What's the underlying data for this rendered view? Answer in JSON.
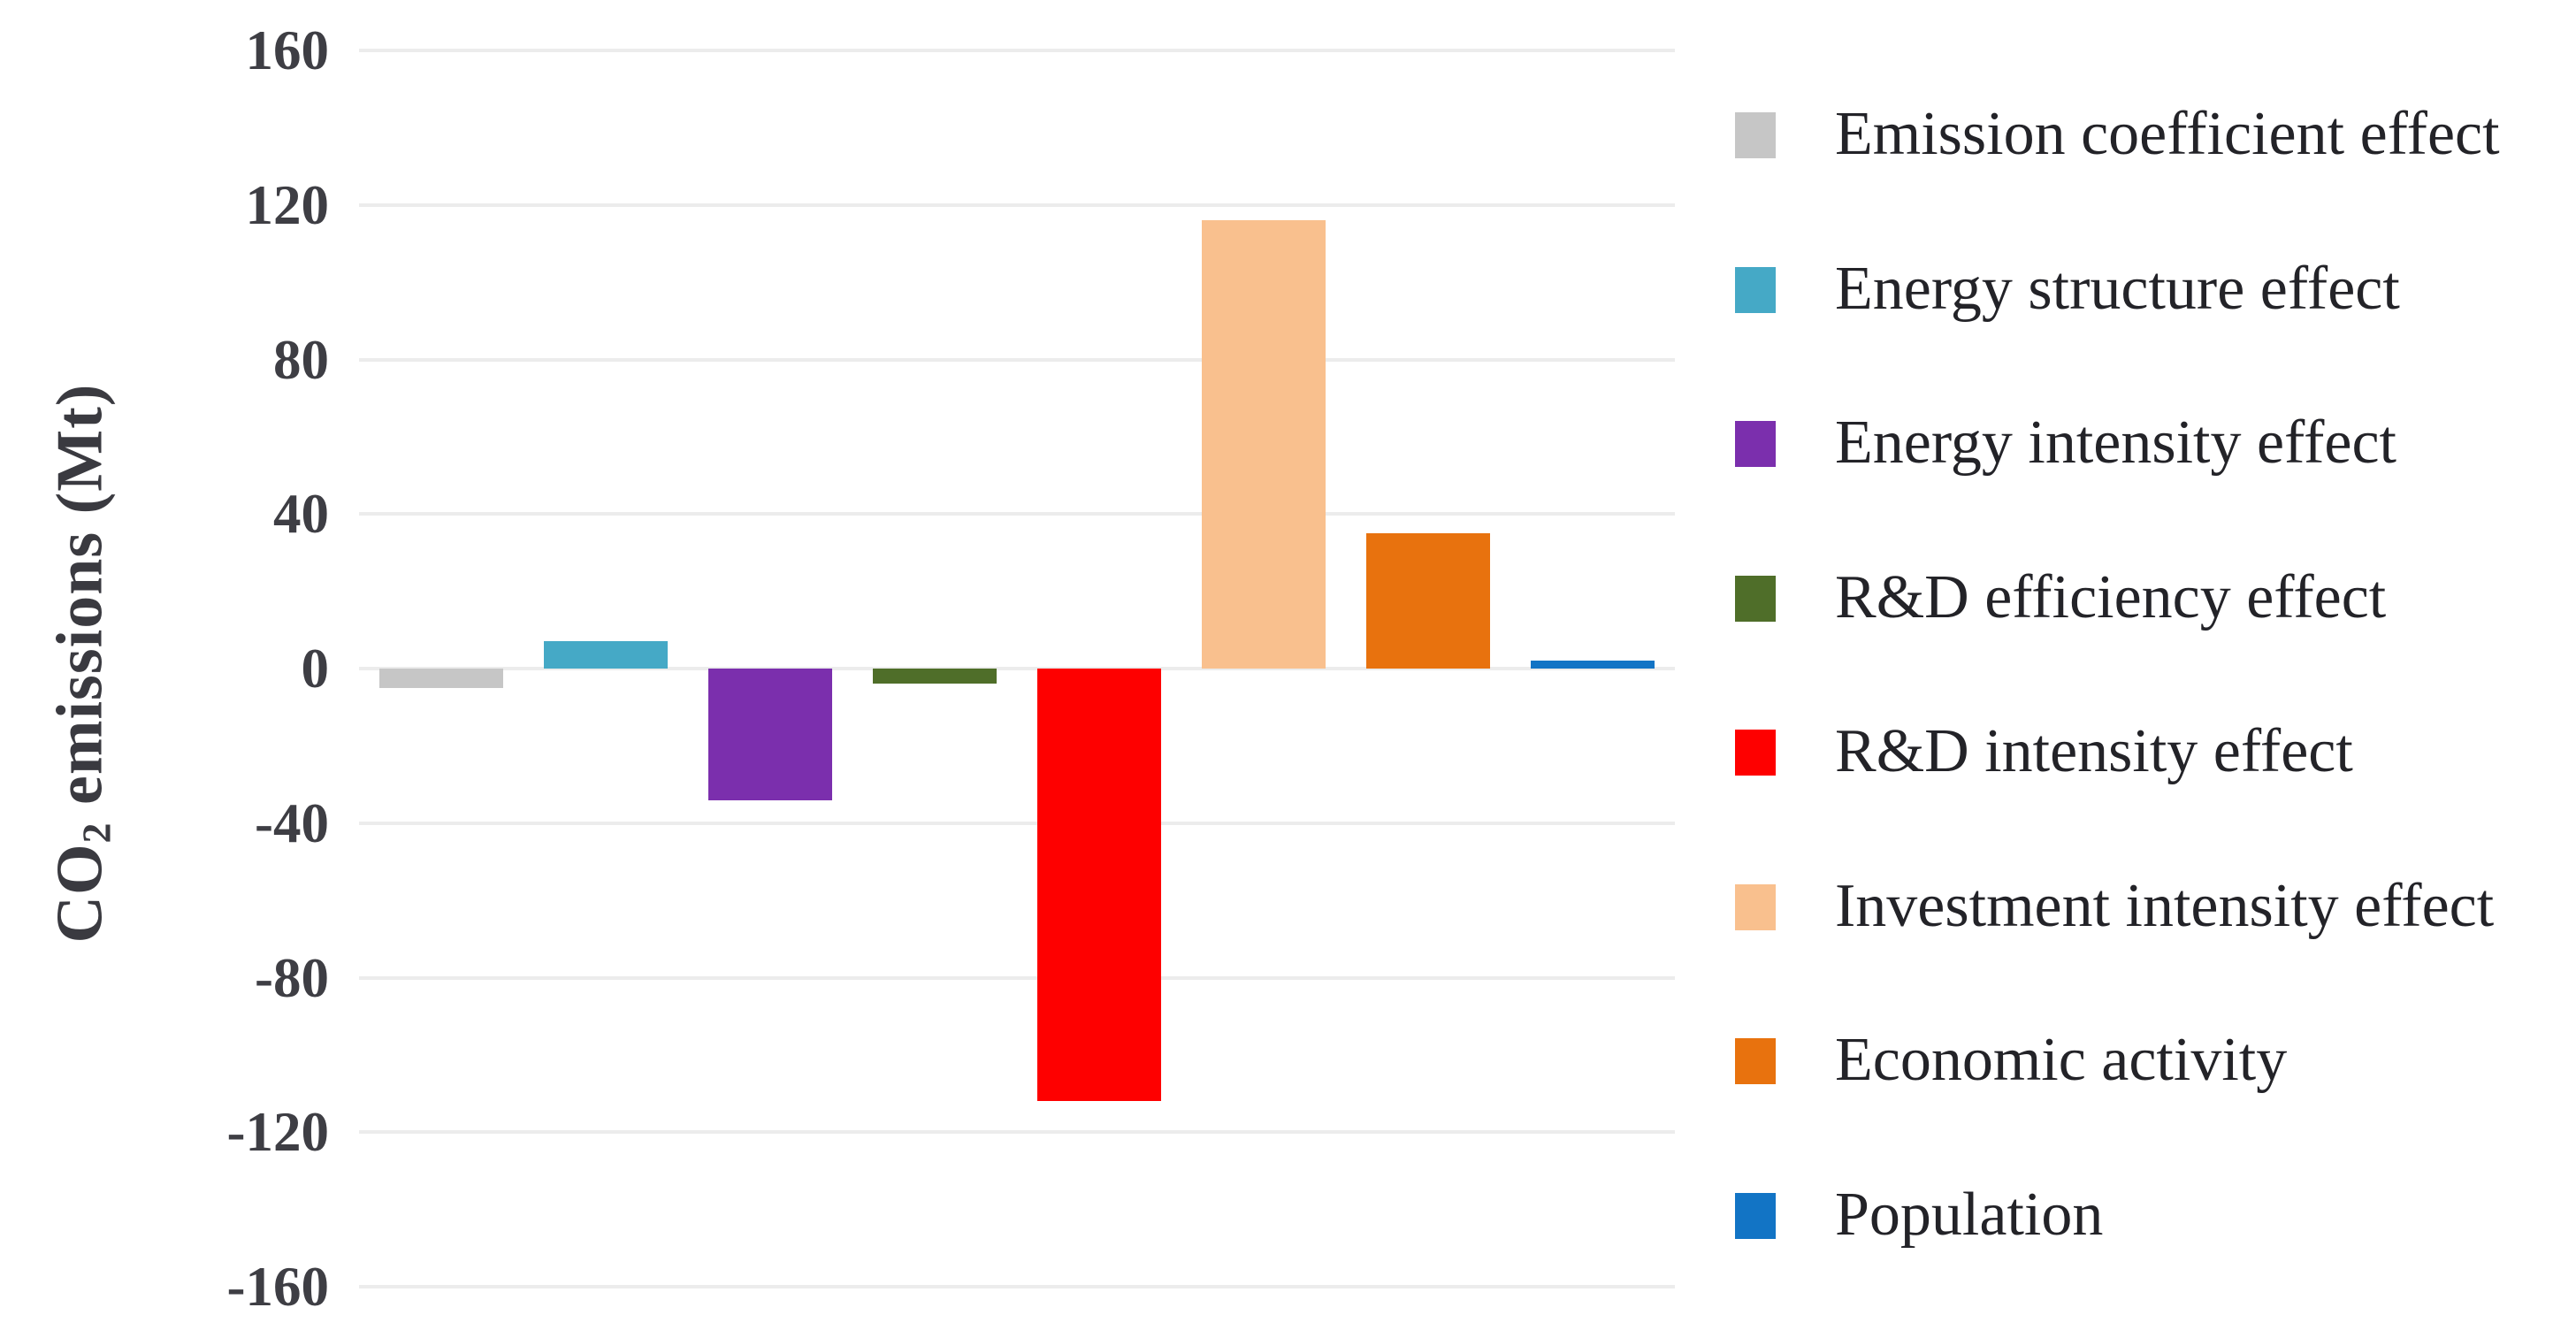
{
  "figure": {
    "background": "#ffffff",
    "ylabel_parts": {
      "prefix": "CO",
      "sub": "2",
      "suffix": " emissions (Mt)"
    }
  },
  "chart_data": {
    "type": "bar",
    "title": "",
    "xlabel": "",
    "ylabel": "CO2 emissions (Mt)",
    "ylim": [
      -160,
      160
    ],
    "yticks": [
      160,
      120,
      80,
      40,
      0,
      -40,
      -80,
      -120,
      -160
    ],
    "grid": true,
    "legend_position": "right",
    "categories": [
      "Emission coefficient effect",
      "Energy structure effect",
      "Energy intensity effect",
      "R&D efficiency effect",
      "R&D intensity effect",
      "Investment intensity effect",
      "Economic activity",
      "Population"
    ],
    "values": [
      -5,
      7,
      -34,
      -4,
      -112,
      116,
      35,
      2
    ],
    "colors": [
      "#c6c6c6",
      "#45a9c6",
      "#7b2fad",
      "#4f6e29",
      "#fe0000",
      "#f9c08e",
      "#e8720e",
      "#1274c5"
    ],
    "gridline_color": "#ececec",
    "tick_text_color": "#3e3e44",
    "legend_text_color": "#232328",
    "axis_title_color": "#3a3a40"
  }
}
